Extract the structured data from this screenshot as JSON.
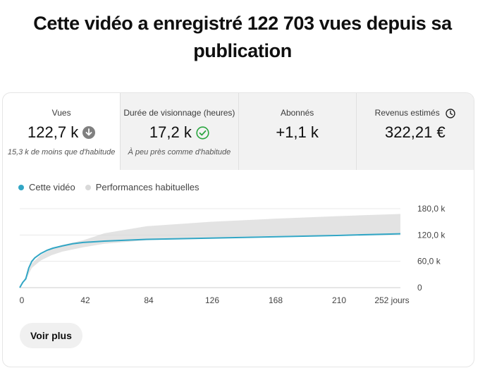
{
  "headline": "Cette vidéo a enregistré 122 703 vues depuis sa publication",
  "metrics": [
    {
      "title": "Vues",
      "value": "122,7 k",
      "note": "15,3 k de moins que d'habitude",
      "status_icon": "arrow-down-circle-icon"
    },
    {
      "title": "Durée de visionnage (heures)",
      "value": "17,2 k",
      "note": "À peu près comme d'habitude",
      "status_icon": "check-circle-icon"
    },
    {
      "title": "Abonnés",
      "value": "+1,1 k",
      "note": ""
    },
    {
      "title": "Revenus estimés",
      "value": "322,21 €",
      "note": "",
      "title_icon": "clock-icon"
    }
  ],
  "legend": {
    "this_video": "Cette vidéo",
    "typical": "Performances habituelles"
  },
  "colors": {
    "this_video": "#32a6c5",
    "typical": "#d9d9d9",
    "check": "#2ba640",
    "down_icon": "#808080"
  },
  "chart_data": {
    "type": "line",
    "x_unit": "jours",
    "x_ticks": [
      "0",
      "42",
      "84",
      "126",
      "168",
      "210",
      "252 jours"
    ],
    "y_ticks": [
      "0",
      "60,0 k",
      "120,0 k",
      "180,0 k"
    ],
    "xlim": [
      0,
      252
    ],
    "ylim": [
      0,
      180000
    ],
    "series": [
      {
        "name": "Cette vidéo",
        "x": [
          0,
          2,
          4,
          6,
          8,
          10,
          14,
          18,
          22,
          28,
          35,
          42,
          56,
          84,
          126,
          168,
          210,
          252
        ],
        "y": [
          0,
          12000,
          20000,
          45000,
          60000,
          68000,
          78000,
          85000,
          90000,
          95000,
          100000,
          103000,
          106000,
          110000,
          113000,
          116000,
          119000,
          122703
        ]
      }
    ],
    "band": {
      "name": "Performances habituelles",
      "x": [
        0,
        4,
        8,
        14,
        21,
        28,
        42,
        56,
        84,
        126,
        168,
        210,
        252
      ],
      "lower": [
        0,
        18000,
        45000,
        62000,
        74000,
        82000,
        92000,
        100000,
        108000,
        114000,
        118000,
        121000,
        123000
      ],
      "upper": [
        0,
        25000,
        55000,
        75000,
        88000,
        97000,
        108000,
        124000,
        140000,
        150000,
        157000,
        163000,
        168000
      ]
    }
  },
  "buttons": {
    "see_more": "Voir plus"
  }
}
